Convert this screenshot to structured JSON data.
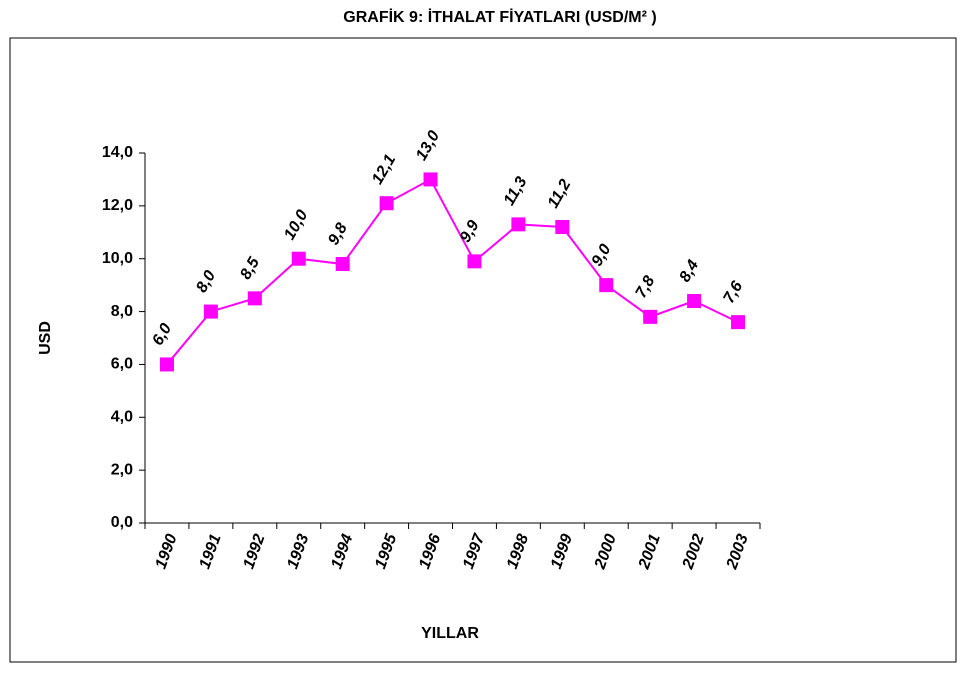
{
  "chart_data": {
    "type": "line",
    "title": "GRAFİK 9: İTHALAT FİYATLARI (USD/M² )",
    "x_label": "YILLAR",
    "y_label": "USD",
    "categories": [
      "1990",
      "1991",
      "1992",
      "1993",
      "1994",
      "1995",
      "1996",
      "1997",
      "1998",
      "1999",
      "2000",
      "2001",
      "2002",
      "2003"
    ],
    "series": [
      {
        "name": "USD",
        "color": "#ff00ff",
        "values": [
          6.0,
          8.0,
          8.5,
          10.0,
          9.8,
          12.1,
          13.0,
          9.9,
          11.3,
          11.2,
          9.0,
          7.8,
          8.4,
          7.6
        ],
        "value_labels": [
          "6,0",
          "8,0",
          "8,5",
          "10,0",
          "9,8",
          "12,1",
          "13,0",
          "9,9",
          "11,3",
          "11,2",
          "9,0",
          "7,8",
          "8,4",
          "7,6"
        ]
      }
    ],
    "ylim": [
      0,
      14
    ],
    "yticks": [
      {
        "value": 0,
        "label": "0,0"
      },
      {
        "value": 2,
        "label": "2,0"
      },
      {
        "value": 4,
        "label": "4,0"
      },
      {
        "value": 6,
        "label": "6,0"
      },
      {
        "value": 8,
        "label": "8,0"
      },
      {
        "value": 10,
        "label": "10,0"
      },
      {
        "value": 12,
        "label": "12,0"
      },
      {
        "value": 14,
        "label": "14,0"
      }
    ],
    "grid": false
  }
}
